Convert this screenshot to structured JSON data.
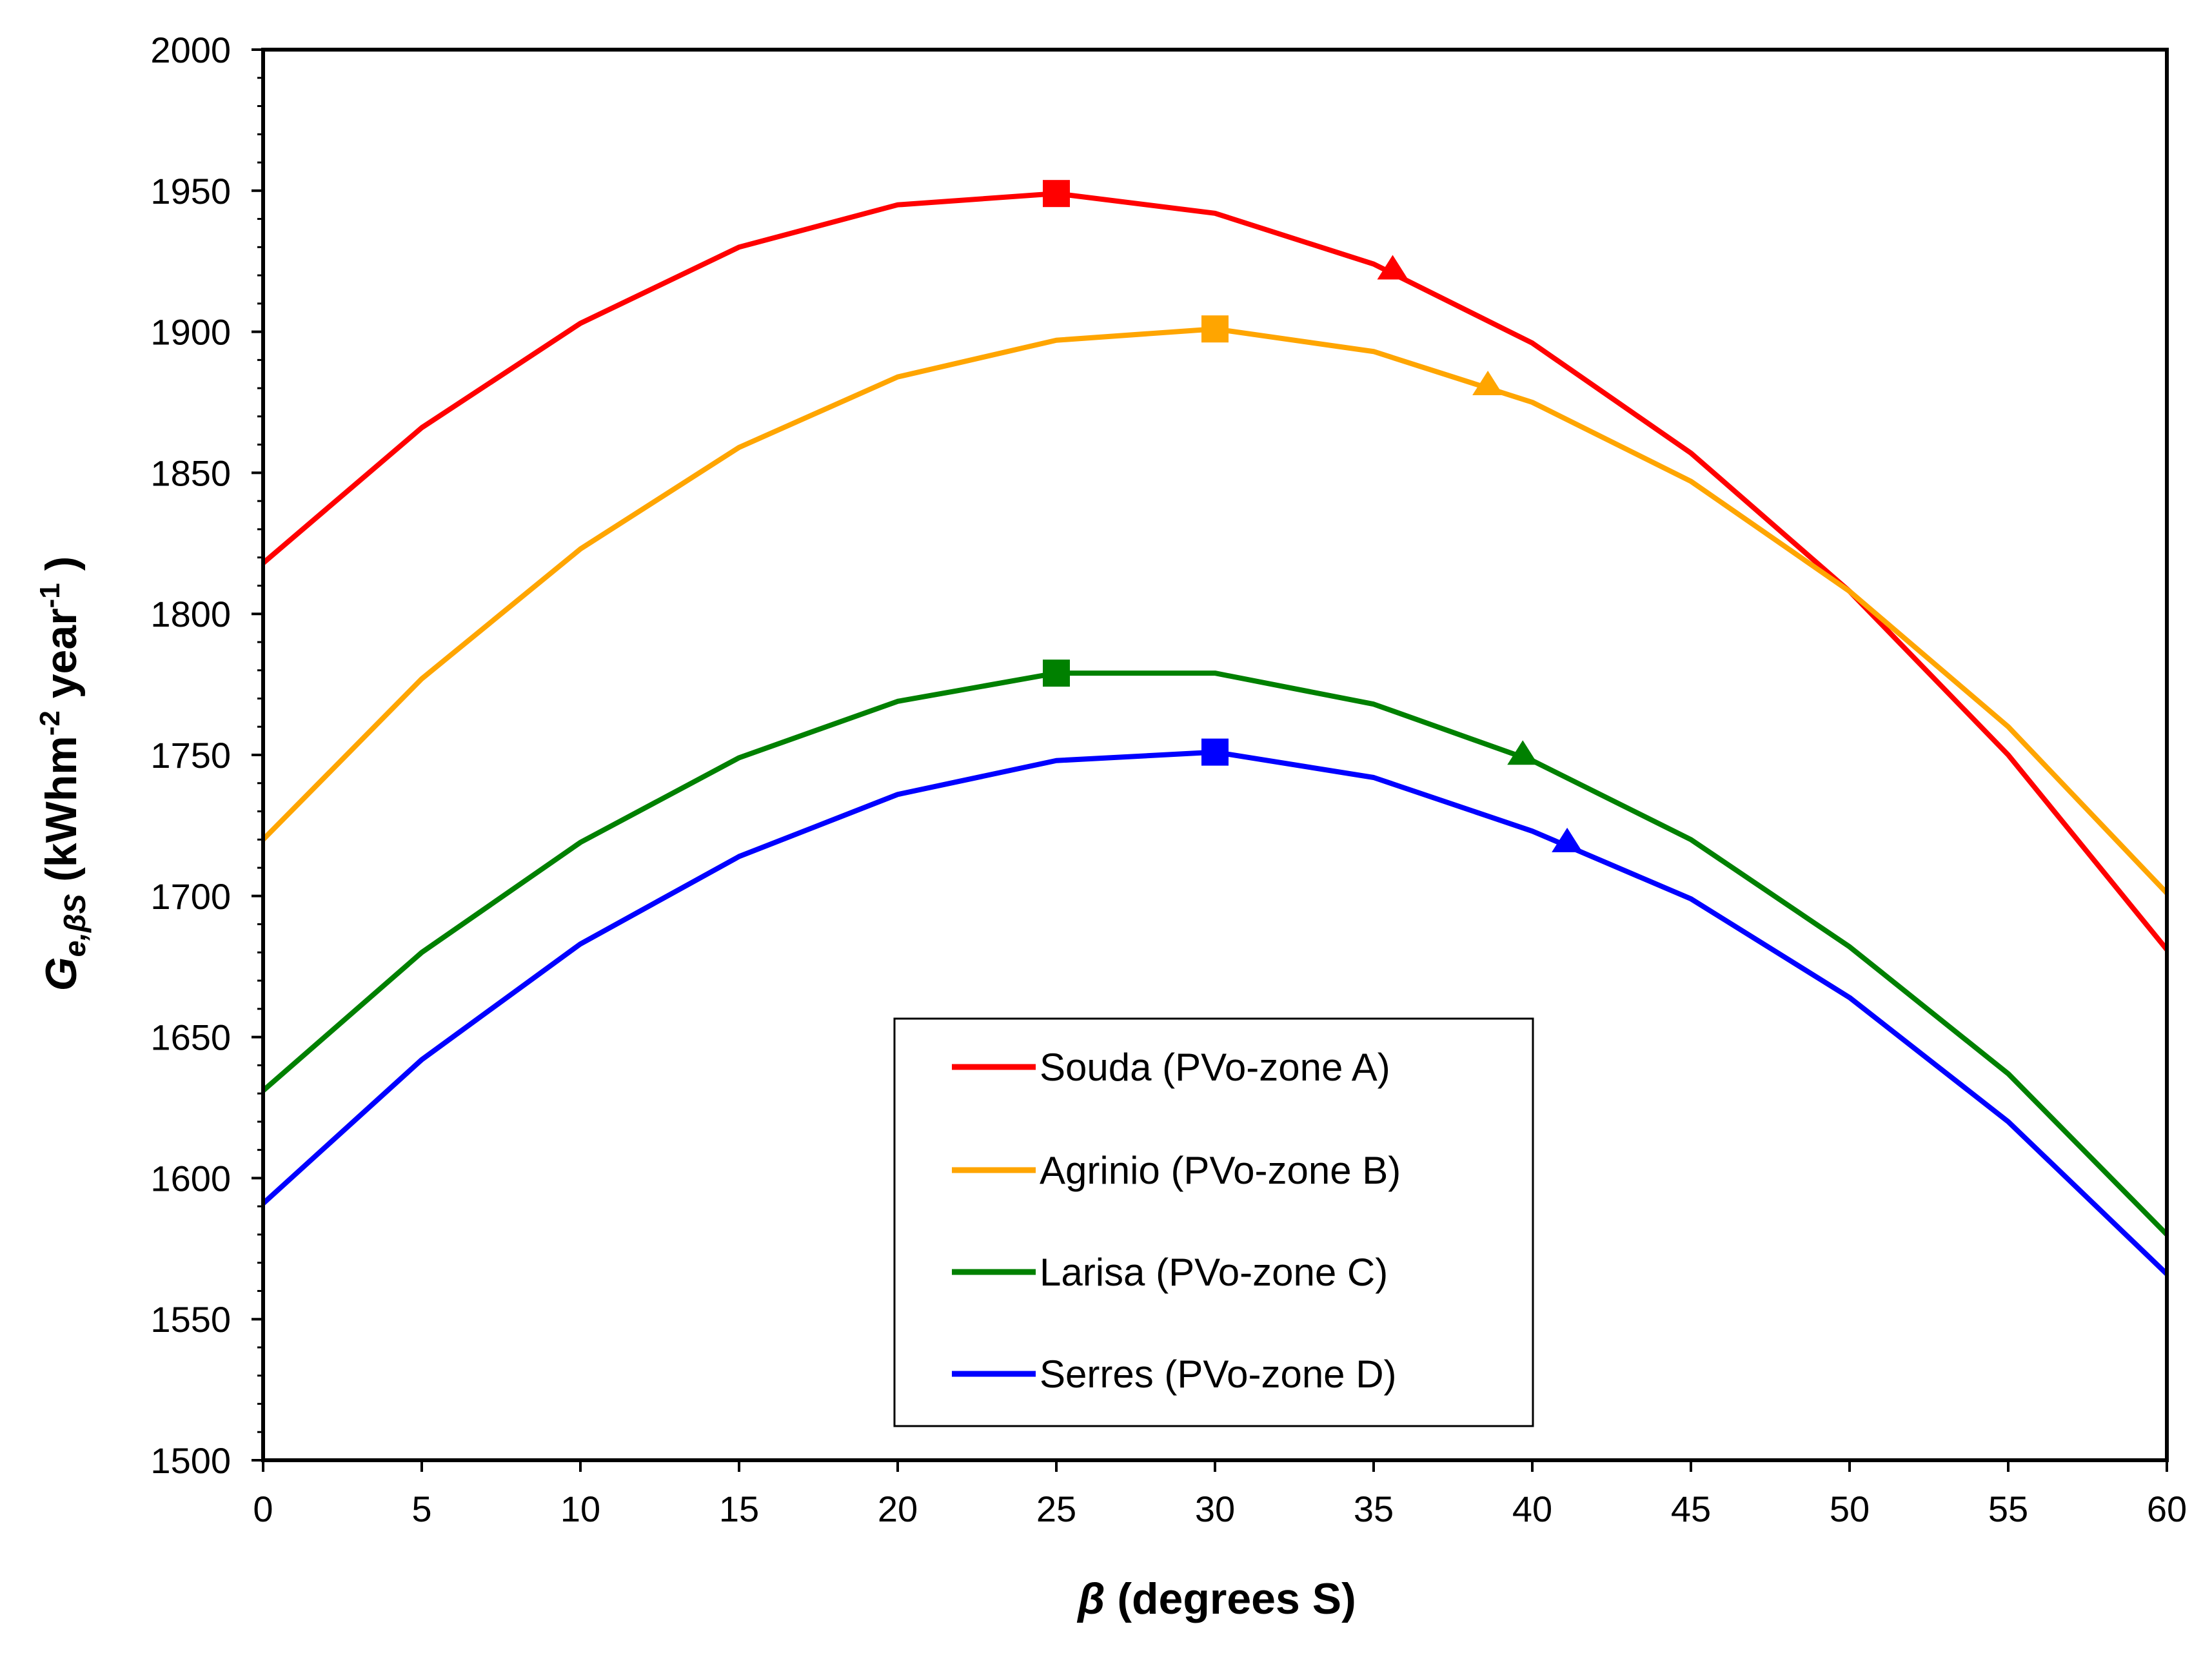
{
  "chart_data": {
    "type": "line",
    "x": [
      0,
      5,
      10,
      15,
      20,
      25,
      30,
      35,
      40,
      45,
      50,
      55,
      60
    ],
    "xlim": [
      0,
      60
    ],
    "ylim": [
      1500,
      2000
    ],
    "xticks": [
      0,
      5,
      10,
      15,
      20,
      25,
      30,
      35,
      40,
      45,
      50,
      55,
      60
    ],
    "yticks": [
      1500,
      1550,
      1600,
      1650,
      1700,
      1750,
      1800,
      1850,
      1900,
      1950,
      2000
    ],
    "xlabel_symbol": "β",
    "xlabel_rest": " (degrees S)",
    "ylabel_main": "G",
    "ylabel_sub": "e,βS",
    "ylabel_open": " (kWhm",
    "ylabel_exp1": "-2",
    "ylabel_mid": " year",
    "ylabel_exp2": "-1",
    "ylabel_close": " )",
    "legend_position": "bottom-center",
    "series": [
      {
        "name": "Souda (PVo-zone A)",
        "color": "#ff0000",
        "values": [
          1818,
          1866,
          1903,
          1930,
          1945,
          1949,
          1942,
          1924,
          1896,
          1857,
          1808,
          1750,
          1681
        ],
        "square": [
          25,
          1949
        ],
        "triangle": [
          35.6,
          1922
        ]
      },
      {
        "name": "Agrinio (PVo-zone B)",
        "color": "#ffa500",
        "values": [
          1720,
          1777,
          1823,
          1859,
          1884,
          1897,
          1901,
          1893,
          1875,
          1847,
          1808,
          1760,
          1701
        ],
        "square": [
          30,
          1901
        ],
        "triangle": [
          38.6,
          1881
        ]
      },
      {
        "name": "Larisa (PVo-zone C)",
        "color": "#008000",
        "values": [
          1631,
          1680,
          1719,
          1749,
          1769,
          1779,
          1779,
          1768,
          1748,
          1720,
          1682,
          1637,
          1580
        ],
        "square": [
          25,
          1779
        ],
        "triangle": [
          39.7,
          1750
        ]
      },
      {
        "name": "Serres (PVo-zone D)",
        "color": "#0000ff",
        "values": [
          1591,
          1642,
          1683,
          1714,
          1736,
          1748,
          1751,
          1742,
          1723,
          1699,
          1664,
          1620,
          1566
        ],
        "square": [
          30,
          1751
        ],
        "triangle": [
          41.1,
          1719
        ]
      }
    ]
  }
}
